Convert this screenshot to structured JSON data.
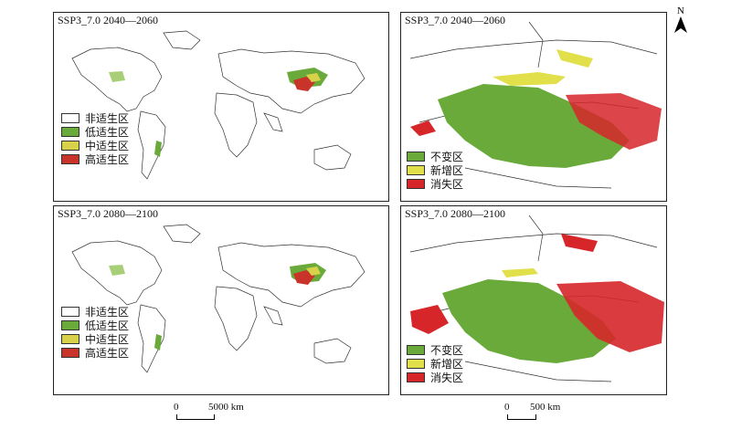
{
  "panels": {
    "world_top": {
      "title": "SSP3_7.0 2040—2060"
    },
    "tibet_top": {
      "title": "SSP3_7.0 2040—2060"
    },
    "world_bottom": {
      "title": "SSP3_7.0 2080—2100"
    },
    "tibet_bottom": {
      "title": "SSP3_7.0 2080—2100"
    }
  },
  "world_legend": [
    {
      "label": "非适生区",
      "color": "#ffffff"
    },
    {
      "label": "低适生区",
      "color": "#6aaa3a"
    },
    {
      "label": "中适生区",
      "color": "#d8d24a"
    },
    {
      "label": "高适生区",
      "color": "#c8342a"
    }
  ],
  "change_legend": [
    {
      "label": "不变区",
      "color": "#6aaa3a"
    },
    {
      "label": "新增区",
      "color": "#e2e04a"
    },
    {
      "label": "消失区",
      "color": "#d6262a"
    }
  ],
  "scalebars": {
    "world": {
      "zero": "0",
      "dist": "5000 km"
    },
    "tibet": {
      "zero": "0",
      "dist": "500 km"
    }
  },
  "north_arrow": {
    "label": "N"
  }
}
